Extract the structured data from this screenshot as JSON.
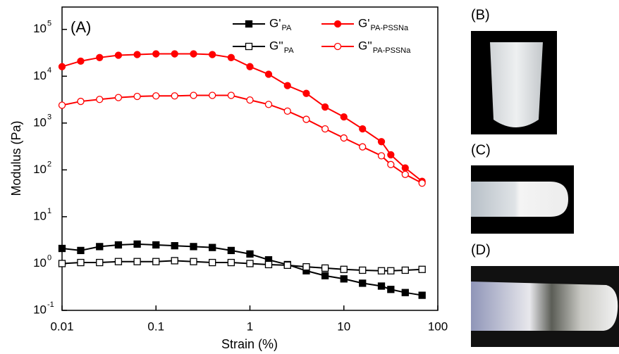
{
  "chart_data": {
    "type": "line",
    "panel_label": "(A)",
    "xlabel": "Strain (%)",
    "ylabel": "Modulus (Pa)",
    "xlog": true,
    "ylog": true,
    "xlim": [
      0.01,
      100
    ],
    "ylim": [
      0.1,
      300000
    ],
    "xticks": [
      0.01,
      0.1,
      1,
      10,
      100
    ],
    "yticks": [
      {
        "value": 0.1,
        "label": "10",
        "exp": "-1"
      },
      {
        "value": 1,
        "label": "10",
        "exp": "0"
      },
      {
        "value": 10,
        "label": "10",
        "exp": "1"
      },
      {
        "value": 100,
        "label": "10",
        "exp": "2"
      },
      {
        "value": 1000,
        "label": "10",
        "exp": "3"
      },
      {
        "value": 10000,
        "label": "10",
        "exp": "4"
      },
      {
        "value": 100000,
        "label": "10",
        "exp": "5"
      }
    ],
    "x": [
      0.01,
      0.0158,
      0.0251,
      0.0398,
      0.0631,
      0.1,
      0.158,
      0.251,
      0.398,
      0.631,
      1,
      1.58,
      2.51,
      3.98,
      6.31,
      10,
      15.8,
      25.1,
      31.6,
      45,
      68
    ],
    "series": [
      {
        "name": "G'",
        "sub": "PA",
        "color": "#000000",
        "marker": "filled",
        "values": [
          2.1,
          1.9,
          2.3,
          2.5,
          2.6,
          2.5,
          2.4,
          2.3,
          2.2,
          1.9,
          1.6,
          1.2,
          0.95,
          0.7,
          0.55,
          0.47,
          0.38,
          0.33,
          0.28,
          0.24,
          0.21
        ]
      },
      {
        "name": "G''",
        "sub": "PA",
        "color": "#000000",
        "marker": "open",
        "values": [
          1.0,
          1.05,
          1.05,
          1.1,
          1.1,
          1.1,
          1.15,
          1.1,
          1.05,
          1.05,
          1.0,
          0.95,
          0.92,
          0.85,
          0.8,
          0.75,
          0.72,
          0.7,
          0.7,
          0.72,
          0.75
        ]
      },
      {
        "name": "G'",
        "sub": "PA-PSSNa",
        "color": "#ff0000",
        "marker": "filled",
        "values": [
          16000,
          21000,
          25000,
          28000,
          29000,
          30000,
          30000,
          30000,
          29000,
          25000,
          16000,
          11000,
          6300,
          4300,
          2200,
          1350,
          750,
          400,
          210,
          110,
          57
        ]
      },
      {
        "name": "G''",
        "sub": "PA-PSSNa",
        "color": "#ff0000",
        "marker": "open",
        "values": [
          2400,
          2900,
          3200,
          3500,
          3700,
          3800,
          3800,
          3900,
          3900,
          3900,
          3100,
          2500,
          1800,
          1200,
          750,
          480,
          310,
          200,
          130,
          80,
          52
        ]
      }
    ]
  },
  "photos": {
    "b": "(B)",
    "c": "(C)",
    "d": "(D)"
  }
}
